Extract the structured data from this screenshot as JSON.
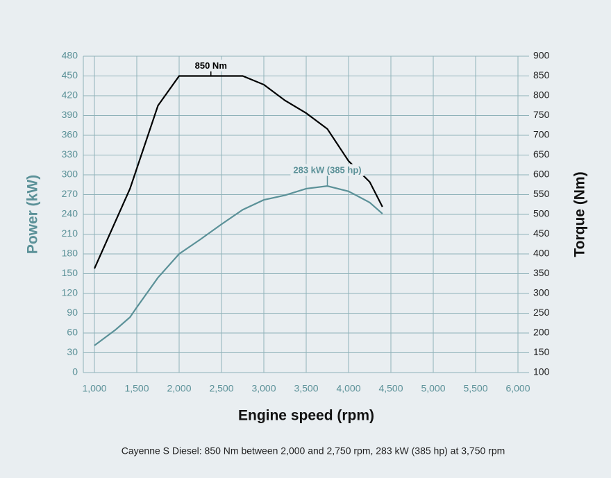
{
  "chart_data": {
    "type": "line",
    "caption": "Cayenne S Diesel: 850 Nm between 2,000 and 2,750 rpm, 283 kW (385 hp) at 3,750 rpm",
    "x_label": "Engine speed (rpm)",
    "y_label": "Power (kW)",
    "y2_label": "Torque (Nm)",
    "xlim": [
      1000,
      6000
    ],
    "xticks": [
      {
        "value": 1000,
        "label": "1,000"
      },
      {
        "value": 1500,
        "label": "1,500"
      },
      {
        "value": 2000,
        "label": "2,000"
      },
      {
        "value": 2500,
        "label": "2,500"
      },
      {
        "value": 3000,
        "label": "3,000"
      },
      {
        "value": 3500,
        "label": "3,500"
      },
      {
        "value": 4000,
        "label": "4,000"
      },
      {
        "value": 4500,
        "label": "4,500"
      },
      {
        "value": 5000,
        "label": "5,000"
      },
      {
        "value": 5500,
        "label": "5,500"
      },
      {
        "value": 6000,
        "label": "6,000"
      }
    ],
    "ylim": [
      0,
      480
    ],
    "yticks": [
      0,
      30,
      60,
      90,
      120,
      150,
      180,
      210,
      240,
      270,
      300,
      330,
      360,
      390,
      420,
      450,
      480
    ],
    "y2lim": [
      100,
      900
    ],
    "y2ticks": [
      100,
      150,
      200,
      250,
      300,
      350,
      400,
      450,
      500,
      550,
      600,
      650,
      700,
      750,
      800,
      850,
      900
    ],
    "grid": true,
    "series": [
      {
        "name": "Power (kW)",
        "color": "#5b9198",
        "axis": "y",
        "x": [
          1000,
          1250,
          1420,
          1500,
          1750,
          2000,
          2250,
          2500,
          2750,
          3000,
          3250,
          3500,
          3750,
          4000,
          4250,
          4400
        ],
        "values": [
          41,
          65,
          84,
          99,
          144,
          180,
          202,
          225,
          247,
          262,
          269,
          279,
          283,
          275,
          258,
          241
        ]
      },
      {
        "name": "Torque (Nm)",
        "color": "#000000",
        "axis": "y2",
        "x": [
          1000,
          1420,
          1750,
          2000,
          2750,
          3000,
          3250,
          3500,
          3750,
          4000,
          4250,
          4400
        ],
        "values": [
          363,
          565,
          775,
          850,
          850,
          828,
          788,
          756,
          716,
          635,
          582,
          519
        ]
      }
    ],
    "annotations": [
      {
        "text": "850 Nm",
        "x": 2375,
        "y": 850,
        "axis": "y2"
      },
      {
        "text": "283 kW (385 hp)",
        "x": 3750,
        "y": 283,
        "axis": "y"
      }
    ]
  }
}
